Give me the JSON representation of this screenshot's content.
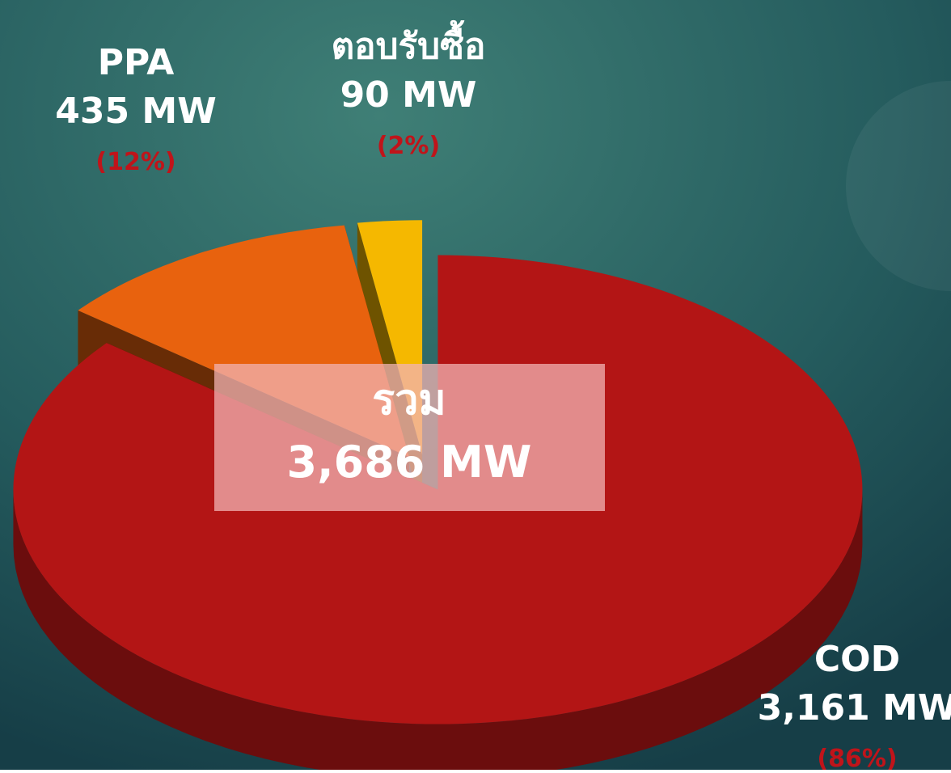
{
  "chart_data": {
    "type": "pie3d",
    "categories": [
      "COD",
      "PPA",
      "ตอบรับซื้อ"
    ],
    "values": [
      3161,
      435,
      90
    ],
    "value_labels": [
      "3,161 MW",
      "435 MW",
      "90 MW"
    ],
    "percents": [
      86,
      12,
      2
    ],
    "percent_labels": [
      "(86%)",
      "(12%)",
      "(2%)"
    ],
    "colors": [
      "#b31515",
      "#e8620e",
      "#f5b800"
    ],
    "total_title": "รวม",
    "total_label": "3,686 MW"
  }
}
